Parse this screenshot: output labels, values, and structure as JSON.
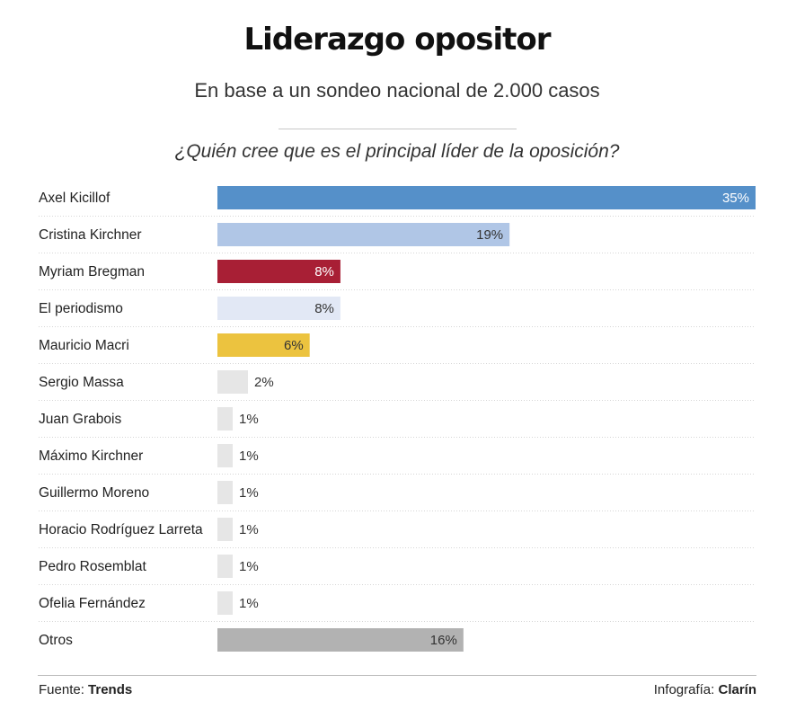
{
  "chart_data": {
    "type": "bar",
    "orientation": "horizontal",
    "title": "Liderazgo opositor",
    "subtitle": "En base a un sondeo nacional de 2.000 casos",
    "question": "¿Quién cree que es el principal líder de la oposición?",
    "value_suffix": "%",
    "xlim": [
      0,
      35
    ],
    "categories": [
      "Axel Kicillof",
      "Cristina Kirchner",
      "Myriam Bregman",
      "El periodismo",
      "Mauricio Macri",
      "Sergio Massa",
      "Juan Grabois",
      "Máximo Kirchner",
      "Guillermo Moreno",
      "Horacio Rodríguez Larreta",
      "Pedro Rosemblat",
      "Ofelia Fernández",
      "Otros"
    ],
    "values": [
      35,
      19,
      8,
      8,
      6,
      2,
      1,
      1,
      1,
      1,
      1,
      1,
      16
    ],
    "colors": [
      "#5590c9",
      "#b0c6e6",
      "#a81f35",
      "#e2e8f5",
      "#ecc33f",
      "#e6e6e6",
      "#e6e6e6",
      "#e6e6e6",
      "#e6e6e6",
      "#e6e6e6",
      "#e6e6e6",
      "#e6e6e6",
      "#b2b2b2"
    ],
    "label_colors": [
      "#ffffff",
      "#333333",
      "#ffffff",
      "#333333",
      "#333333",
      "#333333",
      "#333333",
      "#333333",
      "#333333",
      "#333333",
      "#333333",
      "#333333",
      "#333333"
    ]
  },
  "footer": {
    "source_prefix": "Fuente: ",
    "source_name": "Trends",
    "credit_prefix": "Infografía: ",
    "credit_name": "Clarín"
  }
}
